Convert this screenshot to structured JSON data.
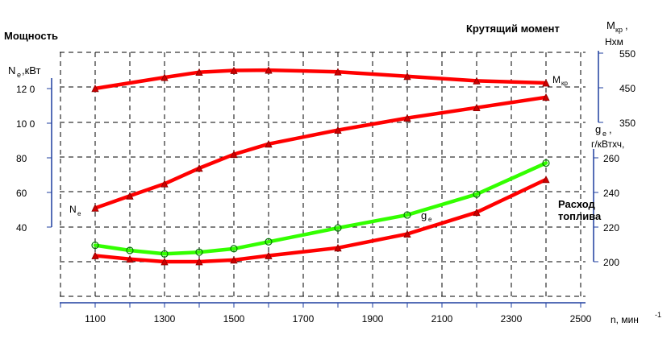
{
  "chart_data": {
    "type": "line",
    "title_left": "Мощность",
    "title_right": "Крутящий момент",
    "consumption_title_line1": "Расход",
    "consumption_title_line2": "топлива",
    "xlabel": "n, мин",
    "xlabel_sup": "-1",
    "x_ticks": [
      "1100",
      "1300",
      "1500",
      "1700",
      "1900",
      "2100",
      "2300",
      "2500"
    ],
    "xlim": [
      1100,
      2500
    ],
    "axes": {
      "power": {
        "label_main": "N",
        "label_sub": "e",
        "label_unit": ",кВт",
        "ticks": [
          "40",
          "60",
          "80",
          "100",
          "120"
        ],
        "tick_labels": [
          "40",
          "60",
          "80",
          "10 0",
          "12 0"
        ],
        "range": [
          40,
          120
        ]
      },
      "torque": {
        "label_main": "M",
        "label_sub": "кр",
        "label_unit": "Нхм",
        "ticks": [
          "350",
          "450",
          "550"
        ],
        "range": [
          350,
          550
        ]
      },
      "consumption": {
        "label_main": "g",
        "label_sub": "e",
        "label_unit": "г/кВтхч,",
        "ticks": [
          "200",
          "220",
          "240",
          "260"
        ],
        "range": [
          200,
          260
        ]
      }
    },
    "series": [
      {
        "key": "torque",
        "axis": "torque",
        "label_main": "M",
        "label_sub": "кр",
        "color": "#ff0000",
        "marker": "triangle",
        "x": [
          1100,
          1300,
          1400,
          1500,
          1600,
          1800,
          2000,
          2200,
          2400
        ],
        "values": [
          448,
          480,
          495,
          500,
          501,
          496,
          483,
          470,
          464
        ]
      },
      {
        "key": "power",
        "axis": "power",
        "label_main": "N",
        "label_sub": "e",
        "color": "#ff0000",
        "marker": "triangle",
        "x": [
          1100,
          1200,
          1300,
          1400,
          1500,
          1600,
          1800,
          2000,
          2200,
          2400
        ],
        "values": [
          51,
          58,
          65,
          74,
          82,
          88,
          96,
          103,
          109,
          115
        ]
      },
      {
        "key": "consumption",
        "axis": "consumption",
        "label_main": "g",
        "label_sub": "e",
        "color": "#33ff00",
        "marker": "circle",
        "x": [
          1100,
          1200,
          1300,
          1400,
          1500,
          1600,
          1800,
          2000,
          2200,
          2400
        ],
        "values": [
          209.5,
          206.5,
          204.5,
          205.5,
          207.5,
          211.5,
          219.5,
          227,
          239,
          257
        ]
      },
      {
        "key": "consumption_lower",
        "axis": "consumption",
        "color": "#ff0000",
        "marker": "triangle",
        "x": [
          1100,
          1200,
          1300,
          1400,
          1500,
          1600,
          1800,
          2000,
          2200,
          2400
        ],
        "values": [
          203.5,
          201.5,
          200,
          200,
          201,
          203.5,
          208,
          216,
          228.5,
          247.5
        ]
      }
    ],
    "grid": true
  }
}
